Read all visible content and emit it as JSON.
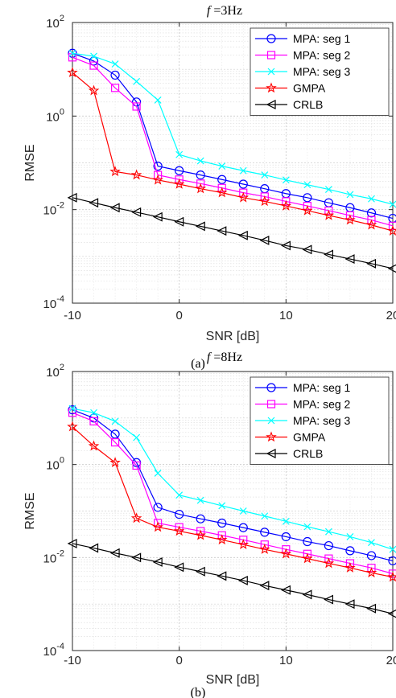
{
  "chart_data": [
    {
      "type": "line",
      "title": "f =3Hz",
      "title_symbol": "f",
      "title_rest": "=3Hz",
      "caption": "(a)",
      "xlabel": "SNR [dB]",
      "ylabel": "RMSE",
      "xlim": [
        -10,
        20
      ],
      "ylim_log10": [
        -4,
        2
      ],
      "yscale": "log",
      "grid": true,
      "legend_placement": "top-right",
      "x_ticks": [
        "-10",
        "0",
        "10",
        "20"
      ],
      "y_ticks": [
        {
          "base": "10",
          "exp": "2"
        },
        {
          "base": "10",
          "exp": "0"
        },
        {
          "base": "10",
          "exp": "-2"
        },
        {
          "base": "10",
          "exp": "-4"
        }
      ],
      "x": [
        -10,
        -8,
        -6,
        -4,
        -2,
        0,
        2,
        4,
        6,
        8,
        10,
        12,
        14,
        16,
        18,
        20
      ],
      "series": [
        {
          "name": "MPA: seg 1",
          "color": "#0000ff",
          "marker": "circle",
          "values": [
            22,
            15,
            7.5,
            2.0,
            0.085,
            0.068,
            0.055,
            0.044,
            0.035,
            0.028,
            0.022,
            0.018,
            0.014,
            0.011,
            0.0085,
            0.0065
          ]
        },
        {
          "name": "MPA: seg 2",
          "color": "#ff00ff",
          "marker": "square",
          "values": [
            18,
            12,
            4.0,
            1.6,
            0.055,
            0.044,
            0.036,
            0.029,
            0.023,
            0.019,
            0.015,
            0.012,
            0.0095,
            0.0075,
            0.006,
            0.0045
          ]
        },
        {
          "name": "MPA: seg 3",
          "color": "#00ffff",
          "marker": "x",
          "values": [
            22,
            19,
            13,
            5.5,
            2.2,
            0.15,
            0.11,
            0.085,
            0.068,
            0.055,
            0.043,
            0.034,
            0.027,
            0.021,
            0.017,
            0.013
          ]
        },
        {
          "name": "GMPA",
          "color": "#ff0000",
          "marker": "star",
          "values": [
            8.5,
            3.5,
            0.065,
            0.055,
            0.043,
            0.035,
            0.028,
            0.023,
            0.018,
            0.015,
            0.012,
            0.0095,
            0.0075,
            0.006,
            0.0047,
            0.0035
          ]
        },
        {
          "name": "CRLB",
          "color": "#000000",
          "marker": "triangle-left",
          "values": [
            0.018,
            0.014,
            0.011,
            0.0088,
            0.007,
            0.0055,
            0.0044,
            0.0035,
            0.0028,
            0.0022,
            0.0017,
            0.0014,
            0.0011,
            0.00088,
            0.0007,
            0.00055
          ]
        }
      ]
    },
    {
      "type": "line",
      "title": "f =8Hz",
      "title_symbol": "f",
      "title_rest": "=8Hz",
      "caption": "(b)",
      "xlabel": "SNR [dB]",
      "ylabel": "RMSE",
      "xlim": [
        -10,
        20
      ],
      "ylim_log10": [
        -4,
        2
      ],
      "yscale": "log",
      "grid": true,
      "legend_placement": "top-right",
      "x_ticks": [
        "-10",
        "0",
        "10",
        "20"
      ],
      "y_ticks": [
        {
          "base": "10",
          "exp": "2"
        },
        {
          "base": "10",
          "exp": "0"
        },
        {
          "base": "10",
          "exp": "-2"
        },
        {
          "base": "10",
          "exp": "-4"
        }
      ],
      "x": [
        -10,
        -8,
        -6,
        -4,
        -2,
        0,
        2,
        4,
        6,
        8,
        10,
        12,
        14,
        16,
        18,
        20
      ],
      "series": [
        {
          "name": "MPA: seg 1",
          "color": "#0000ff",
          "marker": "circle",
          "values": [
            15,
            10,
            4.5,
            1.1,
            0.12,
            0.085,
            0.068,
            0.055,
            0.044,
            0.035,
            0.028,
            0.022,
            0.018,
            0.014,
            0.011,
            0.0085
          ]
        },
        {
          "name": "MPA: seg 2",
          "color": "#ff00ff",
          "marker": "square",
          "values": [
            13,
            8.5,
            3.0,
            0.95,
            0.055,
            0.045,
            0.037,
            0.03,
            0.024,
            0.019,
            0.015,
            0.012,
            0.0095,
            0.0075,
            0.006,
            0.0045
          ]
        },
        {
          "name": "MPA: seg 3",
          "color": "#00ffff",
          "marker": "x",
          "values": [
            16,
            13,
            8.5,
            3.8,
            0.65,
            0.22,
            0.17,
            0.13,
            0.1,
            0.078,
            0.06,
            0.046,
            0.036,
            0.028,
            0.021,
            0.015
          ]
        },
        {
          "name": "GMPA",
          "color": "#ff0000",
          "marker": "star",
          "values": [
            6.5,
            2.5,
            1.1,
            0.07,
            0.045,
            0.037,
            0.03,
            0.024,
            0.019,
            0.015,
            0.012,
            0.0095,
            0.0075,
            0.006,
            0.0047,
            0.0038
          ]
        },
        {
          "name": "CRLB",
          "color": "#000000",
          "marker": "triangle-left",
          "values": [
            0.02,
            0.016,
            0.0125,
            0.01,
            0.008,
            0.0062,
            0.005,
            0.004,
            0.0032,
            0.0025,
            0.002,
            0.0016,
            0.00125,
            0.001,
            0.0008,
            0.00062
          ]
        }
      ]
    }
  ]
}
